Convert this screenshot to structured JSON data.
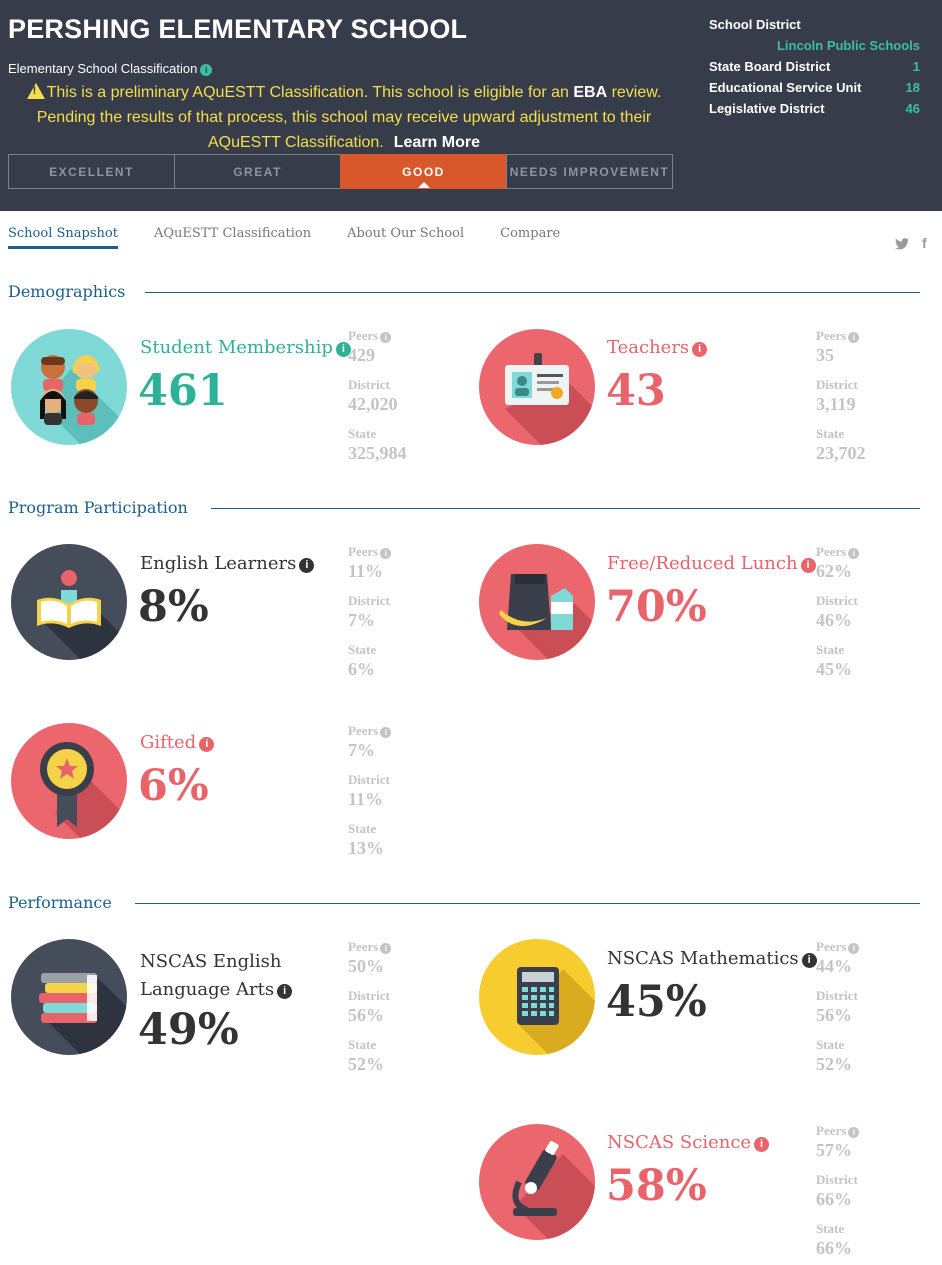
{
  "header": {
    "school_name": "PERSHING ELEMENTARY SCHOOL",
    "classification_label": "Elementary School Classification",
    "notice_part1": "This is a preliminary AQuESTT Classification. This school is eligible for an ",
    "notice_eba": "EBA",
    "notice_part2": " review. Pending the results of that process, this school may receive upward adjustment to their AQuESTT Classification.",
    "learn_more": "Learn More",
    "ratings": [
      "EXCELLENT",
      "GREAT",
      "GOOD",
      "NEEDS IMPROVEMENT"
    ],
    "active_rating": "GOOD",
    "district_info": {
      "school_district_label": "School District",
      "school_district_value": "Lincoln Public Schools",
      "state_board_label": "State Board District",
      "state_board_value": "1",
      "esu_label": "Educational Service Unit",
      "esu_value": "18",
      "legislative_label": "Legislative District",
      "legislative_value": "46"
    }
  },
  "tabs": [
    "School Snapshot",
    "AQuESTT Classification",
    "About Our School",
    "Compare"
  ],
  "social": {
    "twitter": "𝕥",
    "facebook": "f"
  },
  "comp_labels": {
    "peers": "Peers",
    "district": "District",
    "state": "State"
  },
  "sections": {
    "demographics": "Demographics",
    "program": "Program Participation",
    "performance": "Performance"
  },
  "metrics": {
    "students": {
      "label": "Student Membership",
      "value": "461",
      "peers": "429",
      "district": "42,020",
      "state": "325,984"
    },
    "teachers": {
      "label": "Teachers",
      "value": "43",
      "peers": "35",
      "district": "3,119",
      "state": "23,702"
    },
    "ell": {
      "label": "English Learners",
      "value": "8%",
      "peers": "11%",
      "district": "7%",
      "state": "6%"
    },
    "frl": {
      "label": "Free/Reduced Lunch",
      "value": "70%",
      "peers": "62%",
      "district": "46%",
      "state": "45%"
    },
    "gifted": {
      "label": "Gifted",
      "value": "6%",
      "peers": "7%",
      "district": "11%",
      "state": "13%"
    },
    "ela": {
      "label_line1": "NSCAS English",
      "label_line2": "Language Arts",
      "value": "49%",
      "peers": "50%",
      "district": "56%",
      "state": "52%"
    },
    "math": {
      "label": "NSCAS Mathematics",
      "value": "45%",
      "peers": "44%",
      "district": "56%",
      "state": "52%"
    },
    "science": {
      "label": "NSCAS Science",
      "value": "58%",
      "peers": "57%",
      "district": "66%",
      "state": "66%"
    }
  },
  "colors": {
    "header_bg": "#363c4a",
    "teal": "#2db197",
    "coral": "#e8636a",
    "orange_active": "#d9582b",
    "navy": "#1b5f8c",
    "notice_yellow": "#f5df4d"
  }
}
